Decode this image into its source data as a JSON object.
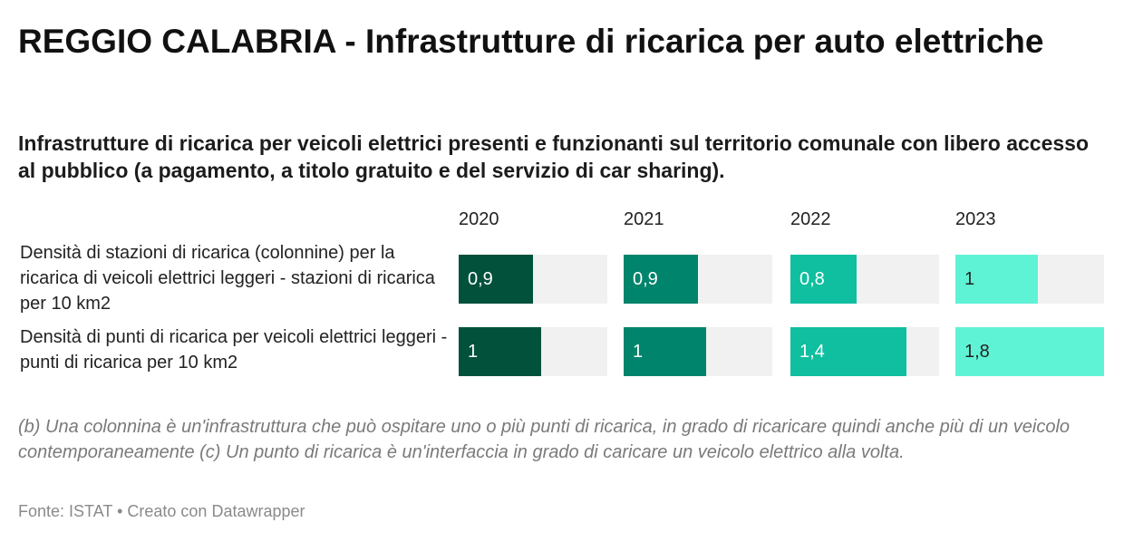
{
  "title": "REGGIO CALABRIA - Infrastrutture di ricarica per auto elettriche",
  "subtitle": "Infrastrutture di ricarica per veicoli elettrici presenti e funzionanti sul territorio comunale con libero accesso al pubblico (a pagamento, a titolo gratuito e del servizio di car sharing).",
  "notes": "(b) Una colonnina è un'infrastruttura che può ospitare uno o più punti di ricarica, in grado di ricaricare quindi anche più di un veicolo contemporaneamente (c) Un punto di ricarica è un'interfaccia in grado di caricare un veicolo elettrico alla volta.",
  "footer": {
    "source": "Fonte: ISTAT",
    "separator": "•",
    "credit": "Creato con Datawrapper"
  },
  "chart_data": {
    "type": "bar",
    "columns": [
      "2020",
      "2021",
      "2022",
      "2023"
    ],
    "column_colors": [
      "#01513b",
      "#00846b",
      "#0fbf9f",
      "#5ff3d6"
    ],
    "value_text_colors": [
      "#ffffff",
      "#ffffff",
      "#ffffff",
      "#222222"
    ],
    "max_value": 1.8,
    "rows": [
      {
        "label": "Densità di stazioni di ricarica (colonnine) per la ricarica di veicoli elettrici leggeri - stazioni di ricarica per 10 km2",
        "values": [
          0.9,
          0.9,
          0.8,
          1
        ],
        "value_labels": [
          "0,9",
          "0,9",
          "0,8",
          "1"
        ]
      },
      {
        "label": "Densità di punti di ricarica per veicoli elettrici leggeri - punti di ricarica per 10 km2",
        "values": [
          1,
          1,
          1.4,
          1.8
        ],
        "value_labels": [
          "1",
          "1",
          "1,4",
          "1,8"
        ]
      }
    ]
  }
}
